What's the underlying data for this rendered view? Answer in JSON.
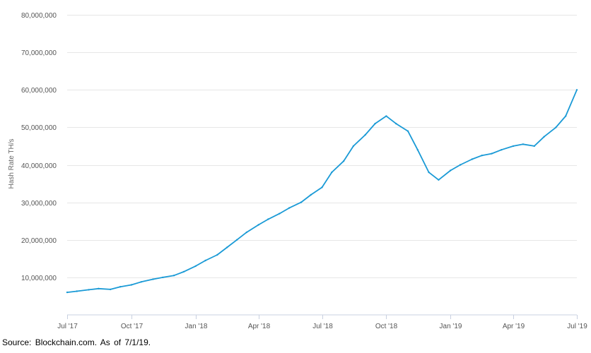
{
  "chart_data": {
    "type": "line",
    "title": "",
    "ylabel": "Hash Rate TH/s",
    "xlabel": "",
    "ylim": [
      0,
      80000000
    ],
    "xlim": [
      "2017-07-01",
      "2019-07-01"
    ],
    "y_ticks": [
      10000000,
      20000000,
      30000000,
      40000000,
      50000000,
      60000000,
      70000000,
      80000000
    ],
    "y_tick_labels": [
      "10,000,000",
      "20,000,000",
      "30,000,000",
      "40,000,000",
      "50,000,000",
      "60,000,000",
      "70,000,000",
      "80,000,000"
    ],
    "x_ticks": [
      "2017-07-01",
      "2017-10-01",
      "2018-01-01",
      "2018-04-01",
      "2018-07-01",
      "2018-10-01",
      "2019-01-01",
      "2019-04-01",
      "2019-07-01"
    ],
    "x_tick_labels": [
      "Jul '17",
      "Oct '17",
      "Jan '18",
      "Apr '18",
      "Jul '18",
      "Oct '18",
      "Jan '19",
      "Apr '19",
      "Jul '19"
    ],
    "grid": "horizontal",
    "legend": "none",
    "line_color": "#1a9ad6",
    "series": [
      {
        "x": [
          "2017-07-01",
          "2017-07-15",
          "2017-08-01",
          "2017-08-15",
          "2017-09-01",
          "2017-09-15",
          "2017-10-01",
          "2017-10-15",
          "2017-11-01",
          "2017-11-15",
          "2017-12-01",
          "2017-12-15",
          "2018-01-01",
          "2018-01-15",
          "2018-02-01",
          "2018-02-15",
          "2018-03-01",
          "2018-03-15",
          "2018-04-01",
          "2018-04-15",
          "2018-05-01",
          "2018-05-15",
          "2018-06-01",
          "2018-06-15",
          "2018-07-01",
          "2018-07-15",
          "2018-08-01",
          "2018-08-15",
          "2018-09-01",
          "2018-09-15",
          "2018-10-01",
          "2018-10-15",
          "2018-11-01",
          "2018-11-15",
          "2018-12-01",
          "2018-12-15",
          "2019-01-01",
          "2019-01-15",
          "2019-02-01",
          "2019-02-15",
          "2019-03-01",
          "2019-03-15",
          "2019-04-01",
          "2019-04-15",
          "2019-05-01",
          "2019-05-15",
          "2019-06-01",
          "2019-06-15",
          "2019-07-01"
        ],
        "values": [
          6000000,
          6300000,
          6700000,
          7000000,
          6800000,
          7500000,
          8000000,
          8800000,
          9500000,
          10000000,
          10500000,
          11500000,
          13000000,
          14500000,
          16000000,
          18000000,
          20000000,
          22000000,
          24000000,
          25500000,
          27000000,
          28500000,
          30000000,
          32000000,
          34000000,
          38000000,
          41000000,
          45000000,
          48000000,
          51000000,
          53000000,
          51000000,
          49000000,
          44000000,
          38000000,
          36000000,
          38500000,
          40000000,
          41500000,
          42500000,
          43000000,
          44000000,
          45000000,
          45500000,
          45000000,
          47500000,
          50000000,
          53000000,
          60000000
        ]
      }
    ]
  },
  "footer": {
    "source": "Source: Blockchain.com. As of 7/1/19."
  }
}
